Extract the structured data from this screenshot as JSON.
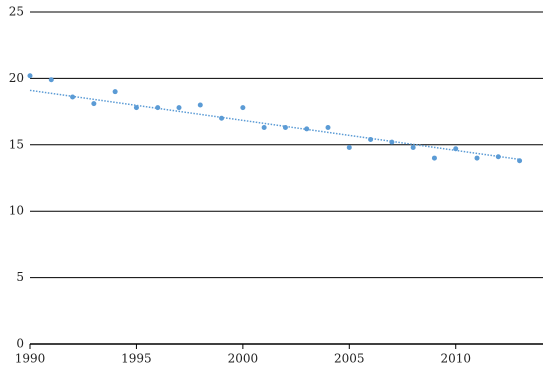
{
  "chart_data": {
    "type": "scatter",
    "x": [
      1990,
      1991,
      1992,
      1993,
      1994,
      1995,
      1996,
      1997,
      1998,
      1999,
      2000,
      2001,
      2002,
      2003,
      2004,
      2005,
      2006,
      2007,
      2008,
      2009,
      2010,
      2011,
      2012,
      2013
    ],
    "values": [
      20.2,
      19.9,
      18.6,
      18.1,
      19.0,
      17.8,
      17.8,
      17.8,
      18.0,
      17.0,
      17.8,
      16.3,
      16.3,
      16.2,
      16.3,
      14.8,
      15.4,
      15.2,
      14.8,
      14.0,
      14.7,
      14.0,
      14.1,
      13.8
    ],
    "color": "#5b9bd5",
    "trendline": {
      "x": [
        1990,
        2013
      ],
      "values": [
        19.1,
        13.9
      ]
    },
    "xlim": [
      1990,
      2014.1
    ],
    "xticks": [
      1990,
      1995,
      2000,
      2005,
      2010
    ],
    "ylim": [
      0,
      25
    ],
    "yticks": [
      0,
      5,
      10,
      15,
      20,
      25
    ],
    "grid": true
  }
}
